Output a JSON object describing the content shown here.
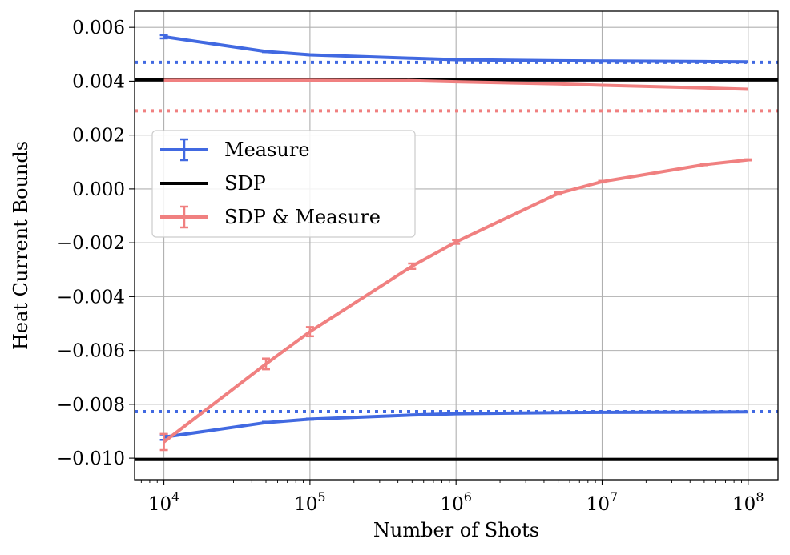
{
  "chart_data": {
    "type": "line",
    "xscale": "log",
    "xlabel": "Number of Shots",
    "ylabel": "Heat Current Bounds",
    "xlim": [
      6300,
      160000000
    ],
    "ylim": [
      -0.0108,
      0.0066
    ],
    "grid": true,
    "x_ticks": [
      {
        "value": 10000,
        "base": "10",
        "exp": "4"
      },
      {
        "value": 100000,
        "base": "10",
        "exp": "5"
      },
      {
        "value": 1000000,
        "base": "10",
        "exp": "6"
      },
      {
        "value": 10000000,
        "base": "10",
        "exp": "7"
      },
      {
        "value": 100000000,
        "base": "10",
        "exp": "8"
      }
    ],
    "y_ticks": [
      {
        "value": 0.006,
        "label": "0.006"
      },
      {
        "value": 0.004,
        "label": "0.004"
      },
      {
        "value": 0.002,
        "label": "0.002"
      },
      {
        "value": 0.0,
        "label": "0.000"
      },
      {
        "value": -0.002,
        "label": "−0.002"
      },
      {
        "value": -0.004,
        "label": "−0.004"
      },
      {
        "value": -0.006,
        "label": "−0.006"
      },
      {
        "value": -0.008,
        "label": "−0.008"
      },
      {
        "value": -0.01,
        "label": "−0.010"
      }
    ],
    "series": [
      {
        "name": "Measure upper",
        "legend": "Measure",
        "color": "#4169e1",
        "x": [
          10000,
          50000,
          100000,
          500000,
          1000000,
          5000000,
          10000000,
          50000000,
          100000000
        ],
        "y": [
          0.00565,
          0.0051,
          0.00498,
          0.00485,
          0.0048,
          0.00476,
          0.00475,
          0.00473,
          0.00472
        ],
        "err": [
          6e-05,
          2e-05,
          1e-05,
          1e-05,
          0.0,
          0.0,
          0.0,
          0.0,
          0.0
        ]
      },
      {
        "name": "Measure lower",
        "color": "#4169e1",
        "x": [
          10000,
          50000,
          100000,
          500000,
          1000000,
          5000000,
          10000000,
          50000000,
          100000000
        ],
        "y": [
          -0.00922,
          -0.00868,
          -0.00855,
          -0.0084,
          -0.00835,
          -0.00831,
          -0.0083,
          -0.00829,
          -0.00828
        ],
        "err": [
          0.0001,
          3e-05,
          2e-05,
          1e-05,
          1e-05,
          0.0,
          0.0,
          0.0,
          0.0
        ]
      },
      {
        "name": "SDP & Measure upper",
        "legend": "SDP & Measure",
        "color": "#f08080",
        "x": [
          10000,
          50000,
          100000,
          500000,
          1000000,
          5000000,
          10000000,
          50000000,
          100000000
        ],
        "y": [
          0.00403,
          0.00403,
          0.00403,
          0.00402,
          0.00398,
          0.0039,
          0.00385,
          0.00375,
          0.0037
        ],
        "err": [
          0.0,
          0.0,
          0.0,
          0.0,
          0.0,
          0.0,
          0.0,
          0.0,
          0.0
        ]
      },
      {
        "name": "SDP & Measure lower",
        "color": "#f08080",
        "x": [
          10000,
          50000,
          100000,
          500000,
          1000000,
          5000000,
          10000000,
          50000000,
          100000000
        ],
        "y": [
          -0.0094,
          -0.0065,
          -0.0053,
          -0.00287,
          -0.00197,
          -0.00017,
          0.00027,
          0.0009,
          0.00108
        ],
        "err": [
          0.0003,
          0.0002,
          0.00017,
          0.0001,
          7e-05,
          4e-05,
          3e-05,
          2e-05,
          2e-05
        ]
      }
    ],
    "reference_lines": [
      {
        "name": "SDP upper",
        "legend": "SDP",
        "y": 0.00405,
        "color": "#000000",
        "style": "solid"
      },
      {
        "name": "SDP lower",
        "y": -0.01005,
        "color": "#000000",
        "style": "solid"
      },
      {
        "name": "Measure asymptote upper",
        "y": 0.0047,
        "color": "#4169e1",
        "style": "dotted"
      },
      {
        "name": "Measure asymptote lower",
        "y": -0.00827,
        "color": "#4169e1",
        "style": "dotted"
      },
      {
        "name": "SDP & Measure asymptote upper",
        "y": 0.0029,
        "color": "#f08080",
        "style": "dotted"
      }
    ],
    "legend": {
      "placement": "center-left",
      "entries": [
        {
          "label": "Measure",
          "color": "#4169e1",
          "kind": "errorbar"
        },
        {
          "label": "SDP",
          "color": "#000000",
          "kind": "line"
        },
        {
          "label": "SDP & Measure",
          "color": "#f08080",
          "kind": "errorbar"
        }
      ]
    }
  }
}
